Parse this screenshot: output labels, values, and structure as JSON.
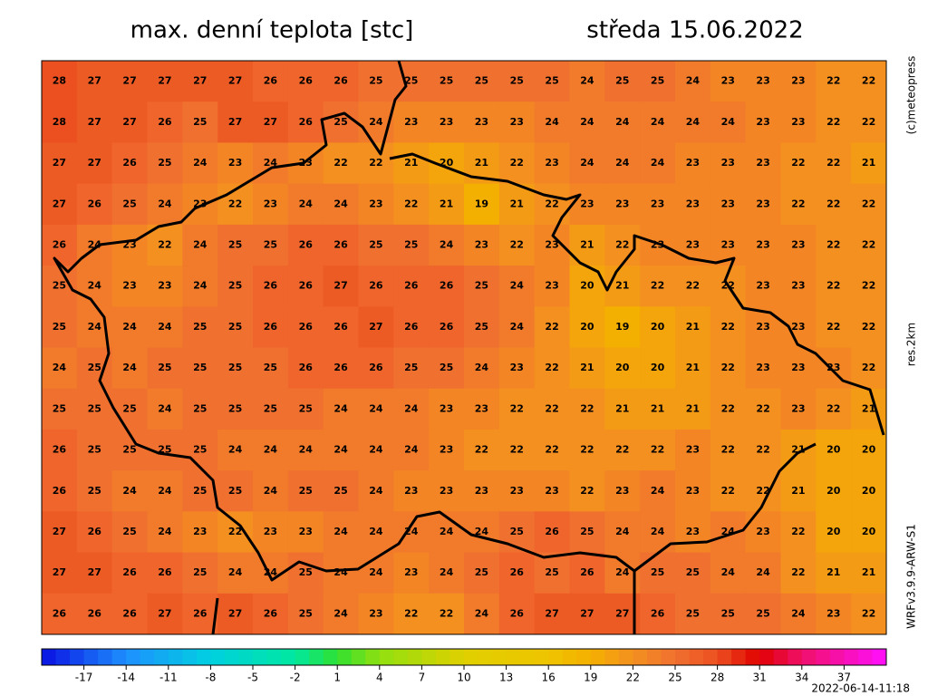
{
  "header": {
    "title": "max. denní teplota [stc]",
    "date": "středa 15.06.2022"
  },
  "side_labels": [
    "(c)meteopress",
    "res.2km",
    "WRFv3.9.9-ARW-S1"
  ],
  "timestamp": "2022-06-14-11:18",
  "grid": {
    "values": [
      [
        28,
        27,
        27,
        27,
        27,
        27,
        26,
        26,
        26,
        25,
        25,
        25,
        25,
        25,
        25,
        24,
        25,
        25,
        24,
        23,
        23,
        23,
        22,
        22
      ],
      [
        28,
        27,
        27,
        26,
        25,
        27,
        27,
        26,
        25,
        24,
        23,
        23,
        23,
        23,
        24,
        24,
        24,
        24,
        24,
        24,
        23,
        23,
        22,
        22
      ],
      [
        27,
        27,
        26,
        25,
        24,
        23,
        24,
        23,
        22,
        22,
        21,
        20,
        21,
        22,
        23,
        24,
        24,
        24,
        23,
        23,
        23,
        22,
        22,
        21
      ],
      [
        27,
        26,
        25,
        24,
        23,
        22,
        23,
        24,
        24,
        23,
        22,
        21,
        19,
        21,
        22,
        23,
        23,
        23,
        23,
        23,
        23,
        22,
        22,
        22
      ],
      [
        26,
        24,
        23,
        22,
        24,
        25,
        25,
        26,
        26,
        25,
        25,
        24,
        23,
        22,
        23,
        21,
        22,
        23,
        23,
        23,
        23,
        23,
        22,
        22
      ],
      [
        25,
        24,
        23,
        23,
        24,
        25,
        26,
        26,
        27,
        26,
        26,
        26,
        25,
        24,
        23,
        20,
        21,
        22,
        22,
        22,
        23,
        23,
        22,
        22
      ],
      [
        25,
        24,
        24,
        24,
        25,
        25,
        26,
        26,
        26,
        27,
        26,
        26,
        25,
        24,
        22,
        20,
        19,
        20,
        21,
        22,
        23,
        23,
        22,
        22
      ],
      [
        24,
        25,
        24,
        25,
        25,
        25,
        25,
        26,
        26,
        26,
        25,
        25,
        24,
        23,
        22,
        21,
        20,
        20,
        21,
        22,
        23,
        23,
        23,
        22
      ],
      [
        25,
        25,
        25,
        24,
        25,
        25,
        25,
        25,
        24,
        24,
        24,
        23,
        23,
        22,
        22,
        22,
        21,
        21,
        21,
        22,
        22,
        23,
        22,
        21
      ],
      [
        26,
        25,
        25,
        25,
        25,
        24,
        24,
        24,
        24,
        24,
        24,
        23,
        22,
        22,
        22,
        22,
        22,
        22,
        23,
        22,
        22,
        21,
        20,
        20
      ],
      [
        26,
        25,
        24,
        24,
        25,
        25,
        24,
        25,
        25,
        24,
        23,
        23,
        23,
        23,
        23,
        22,
        23,
        24,
        23,
        22,
        22,
        21,
        20,
        20
      ],
      [
        27,
        26,
        25,
        24,
        23,
        22,
        23,
        23,
        24,
        24,
        24,
        24,
        24,
        25,
        26,
        25,
        24,
        24,
        23,
        24,
        23,
        22,
        20,
        20
      ],
      [
        27,
        27,
        26,
        26,
        25,
        24,
        24,
        25,
        24,
        24,
        23,
        24,
        25,
        26,
        25,
        26,
        24,
        25,
        25,
        24,
        24,
        22,
        21,
        21
      ],
      [
        26,
        26,
        26,
        27,
        26,
        27,
        26,
        25,
        24,
        23,
        22,
        22,
        24,
        26,
        27,
        27,
        27,
        26,
        25,
        25,
        25,
        24,
        23,
        22
      ]
    ]
  },
  "colorbar": {
    "range": [
      -20,
      40
    ],
    "ticks": [
      -17,
      -14,
      -11,
      -8,
      -5,
      -2,
      1,
      4,
      7,
      10,
      13,
      16,
      19,
      22,
      25,
      28,
      31,
      34,
      37
    ],
    "stops": [
      {
        "value": -20,
        "color": "#0a10e0"
      },
      {
        "value": -14,
        "color": "#1e90ff"
      },
      {
        "value": -8,
        "color": "#00d0e0"
      },
      {
        "value": -2,
        "color": "#00e8a0"
      },
      {
        "value": 1,
        "color": "#30e030"
      },
      {
        "value": 4,
        "color": "#90e010"
      },
      {
        "value": 10,
        "color": "#e0d000"
      },
      {
        "value": 16,
        "color": "#eec400"
      },
      {
        "value": 19,
        "color": "#f4b000"
      },
      {
        "value": 22,
        "color": "#f49020"
      },
      {
        "value": 25,
        "color": "#f07030"
      },
      {
        "value": 28,
        "color": "#ec5020"
      },
      {
        "value": 31,
        "color": "#e00000"
      },
      {
        "value": 34,
        "color": "#f0106a"
      },
      {
        "value": 40,
        "color": "#ff10ff"
      }
    ]
  }
}
